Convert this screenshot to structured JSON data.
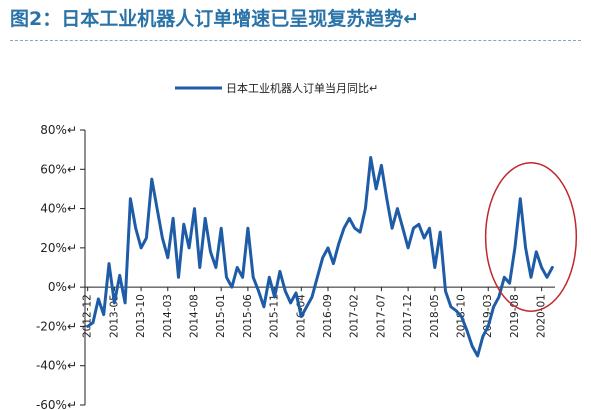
{
  "figure": {
    "title": "图2：日本工业机器人订单增速已呈现复苏趋势↵"
  },
  "chart_data": {
    "type": "line",
    "title": "",
    "xlabel": "",
    "ylabel": "",
    "ylim": [
      -60,
      80
    ],
    "grid": false,
    "legend_position": "top",
    "legend_label": "日本工业机器人订单当月同比↵",
    "y_ticks": [
      80,
      60,
      40,
      20,
      0,
      -20,
      -40,
      -60
    ],
    "y_tick_labels": [
      "80%↵",
      "60%↵",
      "40%↵",
      "20%↵",
      "0%↵",
      "-20%↵",
      "-40%↵",
      "-60%↵"
    ],
    "x_tick_labels": [
      "2012-12",
      "2013-05",
      "2013-10",
      "2014-03",
      "2014-08",
      "2015-01",
      "2015-06",
      "2015-11",
      "2016-04",
      "2016-09",
      "2017-02",
      "2017-07",
      "2017-12",
      "2018-05",
      "2018-10",
      "2019-03",
      "2019-08",
      "2020-01"
    ],
    "series_color": "#1f5ca8",
    "highlight_color": "#c0282c",
    "highlight_range": [
      "2019-07",
      "2020-03"
    ],
    "series": [
      {
        "name": "日本工业机器人订单当月同比↵",
        "x": [
          "2012-12",
          "2013-01",
          "2013-02",
          "2013-03",
          "2013-04",
          "2013-05",
          "2013-06",
          "2013-07",
          "2013-08",
          "2013-09",
          "2013-10",
          "2013-11",
          "2013-12",
          "2014-01",
          "2014-02",
          "2014-03",
          "2014-04",
          "2014-05",
          "2014-06",
          "2014-07",
          "2014-08",
          "2014-09",
          "2014-10",
          "2014-11",
          "2014-12",
          "2015-01",
          "2015-02",
          "2015-03",
          "2015-04",
          "2015-05",
          "2015-06",
          "2015-07",
          "2015-08",
          "2015-09",
          "2015-10",
          "2015-11",
          "2015-12",
          "2016-01",
          "2016-02",
          "2016-03",
          "2016-04",
          "2016-05",
          "2016-06",
          "2016-07",
          "2016-08",
          "2016-09",
          "2016-10",
          "2016-11",
          "2016-12",
          "2017-01",
          "2017-02",
          "2017-03",
          "2017-04",
          "2017-05",
          "2017-06",
          "2017-07",
          "2017-08",
          "2017-09",
          "2017-10",
          "2017-11",
          "2017-12",
          "2018-01",
          "2018-02",
          "2018-03",
          "2018-04",
          "2018-05",
          "2018-06",
          "2018-07",
          "2018-08",
          "2018-09",
          "2018-10",
          "2018-11",
          "2018-12",
          "2019-01",
          "2019-02",
          "2019-03",
          "2019-04",
          "2019-05",
          "2019-06",
          "2019-07",
          "2019-08",
          "2019-09",
          "2019-10",
          "2019-11",
          "2019-12",
          "2020-01",
          "2020-02",
          "2020-03"
        ],
        "values": [
          -20,
          -18,
          -6,
          -14,
          12,
          -8,
          6,
          -8,
          45,
          30,
          20,
          25,
          55,
          40,
          25,
          15,
          35,
          5,
          32,
          20,
          40,
          10,
          35,
          18,
          10,
          30,
          5,
          0,
          10,
          5,
          30,
          5,
          -2,
          -10,
          5,
          -5,
          8,
          -2,
          -8,
          -3,
          -15,
          -10,
          -5,
          5,
          15,
          20,
          12,
          22,
          30,
          35,
          30,
          28,
          40,
          66,
          50,
          62,
          45,
          30,
          40,
          30,
          20,
          30,
          32,
          25,
          30,
          10,
          28,
          -2,
          -10,
          -12,
          -15,
          -22,
          -30,
          -35,
          -25,
          -20,
          -10,
          -5,
          5,
          2,
          20,
          45,
          20,
          5,
          18,
          10,
          5,
          10
        ]
      }
    ]
  }
}
